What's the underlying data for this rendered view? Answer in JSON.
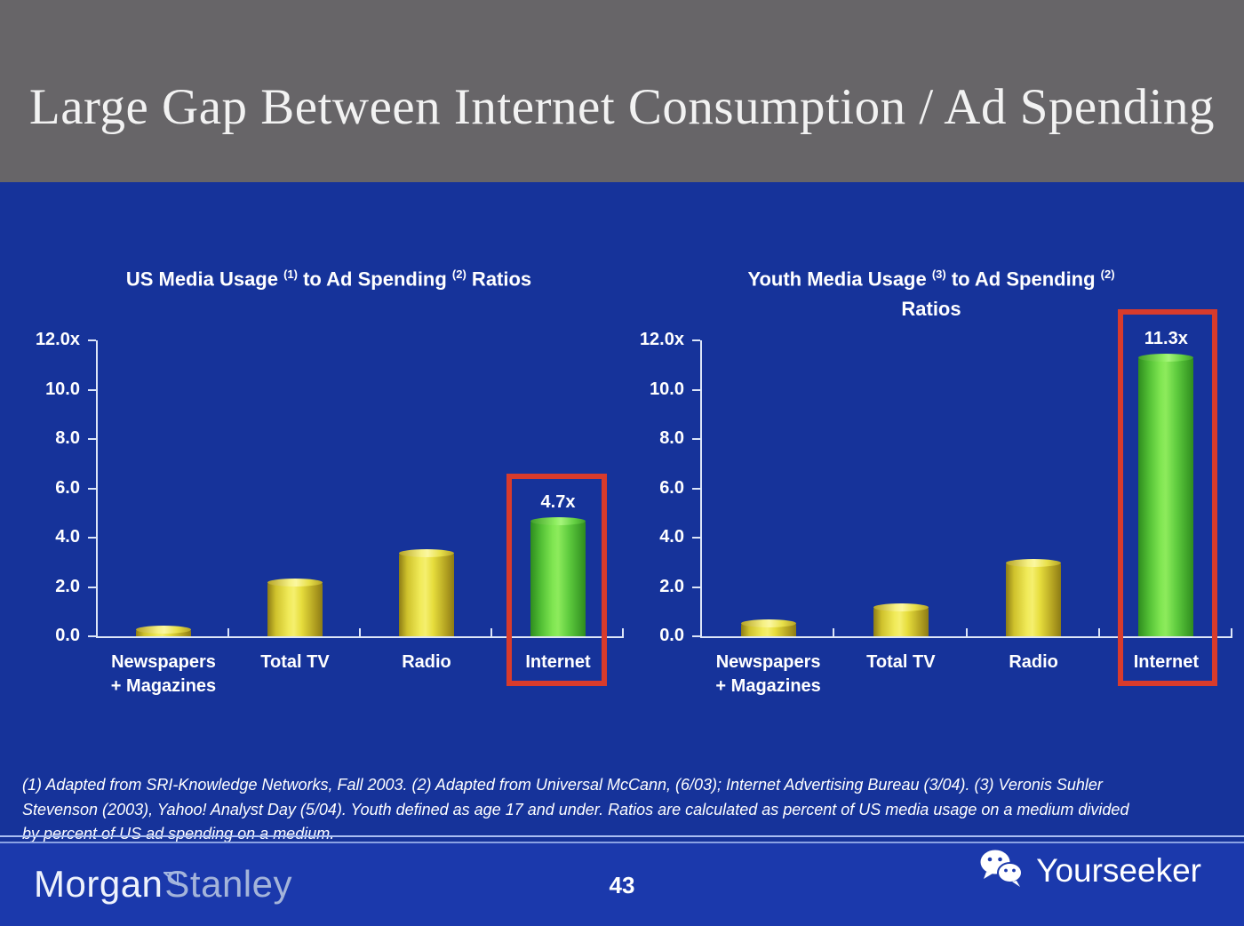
{
  "slide": {
    "header": {
      "title": "Large Gap Between Internet Consumption / Ad Spending"
    },
    "footnote": {
      "lines": [
        "(1) Adapted from SRI-Knowledge Networks, Fall 2003.  (2) Adapted from Universal McCann, (6/03); Internet Advertising Bureau (3/04). (3) Veronis Suhler",
        "Stevenson (2003), Yahoo! Analyst Day (5/04).  Youth defined as age 17 and under.  Ratios are calculated as percent of US media usage on a medium divided",
        "by percent of US ad spending on a medium."
      ]
    },
    "footer": {
      "brand": {
        "part1": "Morgan",
        "part2": "Stanley",
        "icon": "morgan-stanley-triangle-icon"
      },
      "page_number": "43",
      "watermark": {
        "label": "Yourseeker",
        "icon": "wechat-icon"
      }
    }
  },
  "colors": {
    "header_bg": "#676568",
    "body_bg": "#16339a",
    "footer_bg": "#1b39ac",
    "bar_yellow": "#f0ea58",
    "bar_green": "#7fe551",
    "highlight_red": "#d83b2c",
    "axis": "#dde6f8",
    "divider": "#a9bdf2",
    "text": "#ffffff"
  },
  "chart_data": [
    {
      "type": "bar",
      "title_lines": [
        [
          {
            "t": "US Media Usage "
          },
          {
            "sup": "(1)"
          },
          {
            "t": " to Ad Spending "
          },
          {
            "sup": "(2)"
          },
          {
            "t": " Ratios"
          }
        ]
      ],
      "categories": [
        "Newspapers\n+ Magazines",
        "Total TV",
        "Radio",
        "Internet"
      ],
      "values": [
        0.3,
        2.2,
        3.4,
        4.7
      ],
      "bar_colors": [
        "yellow",
        "yellow",
        "yellow",
        "green"
      ],
      "data_labels": [
        null,
        null,
        null,
        "4.7x"
      ],
      "highlight_index": 3,
      "ylim": [
        0,
        12
      ],
      "ytick_labels": [
        "12.0x",
        "10.0",
        "8.0",
        "6.0",
        "4.0",
        "2.0",
        "0.0"
      ],
      "grid": false,
      "legend": null
    },
    {
      "type": "bar",
      "title_lines": [
        [
          {
            "t": "Youth Media Usage "
          },
          {
            "sup": "(3)"
          },
          {
            "t": " to Ad Spending "
          },
          {
            "sup": "(2)"
          }
        ],
        [
          {
            "t": "Ratios"
          }
        ]
      ],
      "categories": [
        "Newspapers\n+ Magazines",
        "Total TV",
        "Radio",
        "Internet"
      ],
      "values": [
        0.55,
        1.2,
        3.0,
        11.3
      ],
      "bar_colors": [
        "yellow",
        "yellow",
        "yellow",
        "green"
      ],
      "data_labels": [
        null,
        null,
        null,
        "11.3x"
      ],
      "highlight_index": 3,
      "ylim": [
        0,
        12
      ],
      "ytick_labels": [
        "12.0x",
        "10.0",
        "8.0",
        "6.0",
        "4.0",
        "2.0",
        "0.0"
      ],
      "grid": false,
      "legend": null
    }
  ]
}
